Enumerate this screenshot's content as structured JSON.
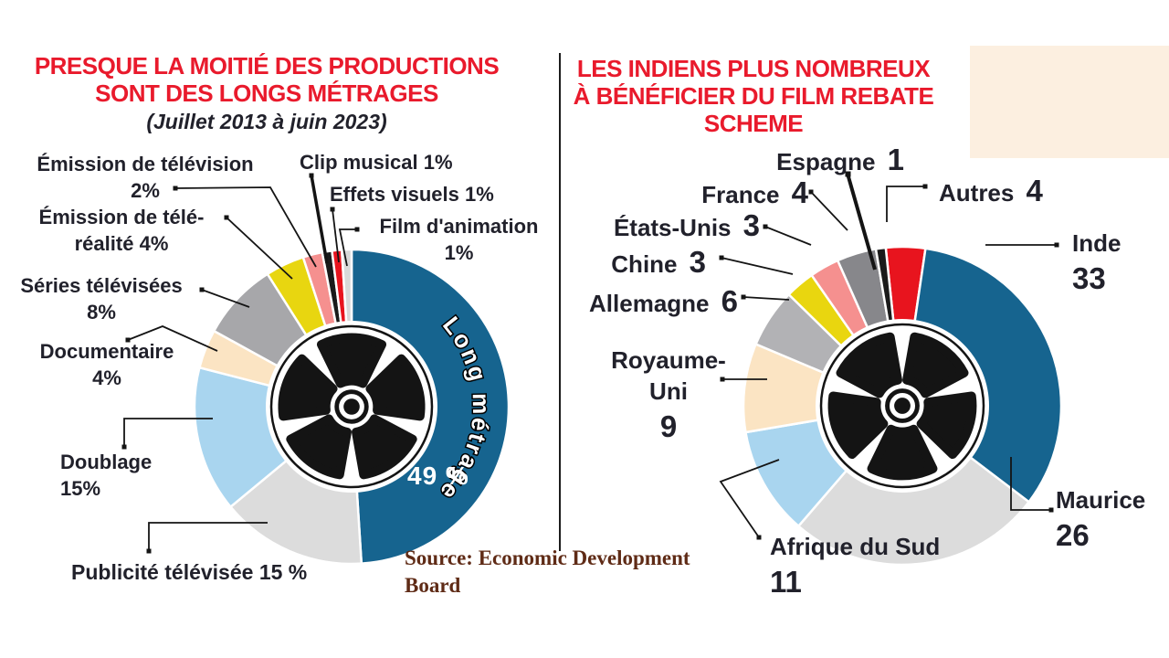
{
  "left_panel": {
    "title_lines": [
      "PRESQUE LA MOITIÉ DES PRODUCTIONS",
      "SONT DES LONGS MÉTRAGES"
    ],
    "subtitle": "(Juillet 2013 à juin 2023)",
    "source_lines": [
      "Source: Economic Development",
      "Board"
    ]
  },
  "right_panel": {
    "title_lines": [
      "LES INDIENS PLUS NOMBREUX",
      "À BÉNÉFICIER DU FILM REBATE",
      "SCHEME"
    ]
  },
  "colors": {
    "title_red": "#e91a2c",
    "text_dark": "#21212b",
    "source_brown": "#5f2b16",
    "divider": "#1c1c1c",
    "cream_box": "#fcefe0",
    "reel_black": "#141414",
    "blue": "#16648f",
    "light_gray": "#dcdcdc",
    "light_blue": "#a9d5ef",
    "peach": "#fbe4c3",
    "gray": "#a7a7aa",
    "yellow": "#e8d610",
    "salmon": "#f5908f",
    "red": "#e8141e",
    "dark_gray": "#87878b",
    "black_segment": "#1a1a1a"
  },
  "chart_data": [
    {
      "type": "donut",
      "title": "PRESQUE LA MOITIÉ DES PRODUCTIONS SONT DES LONGS MÉTRAGES",
      "period": "(Juillet 2013 à juin 2023)",
      "unit": "%",
      "center_icon": "film-reel",
      "legend_position": "callouts-around-donut",
      "segments": [
        {
          "label": "Long métrage",
          "value": 49,
          "display": "49 %",
          "color": "#16648f"
        },
        {
          "label": "Publicité télévisée",
          "value": 15,
          "display": "15 %",
          "color": "#dcdcdc"
        },
        {
          "label": "Doublage",
          "value": 15,
          "display": "15%",
          "color": "#a9d5ef"
        },
        {
          "label": "Documentaire",
          "value": 4,
          "display": "4%",
          "color": "#fbe4c3"
        },
        {
          "label": "Séries télévisées",
          "value": 8,
          "display": "8%",
          "color": "#a7a7aa"
        },
        {
          "label": "Émission de télé-réalité",
          "value": 4,
          "display": "4%",
          "color": "#e8d610"
        },
        {
          "label": "Émission de télévision",
          "value": 2,
          "display": "2%",
          "color": "#f5908f"
        },
        {
          "label": "Clip musical",
          "value": 1,
          "display": "1%",
          "color": "#1a1a1a"
        },
        {
          "label": "Effets visuels",
          "value": 1,
          "display": "1%",
          "color": "#e8141e"
        },
        {
          "label": "Film d'animation",
          "value": 1,
          "display": "1%",
          "color": "#d8d8d8"
        }
      ]
    },
    {
      "type": "donut",
      "title": "LES INDIENS PLUS NOMBREUX À BÉNÉFICIER DU FILM REBATE SCHEME",
      "unit": "count",
      "center_icon": "film-reel",
      "legend_position": "callouts-around-donut",
      "segments": [
        {
          "label": "Autres",
          "value": 4,
          "display": "4",
          "color": "#e8141e"
        },
        {
          "label": "Inde",
          "value": 33,
          "display": "33",
          "color": "#16648f"
        },
        {
          "label": "Maurice",
          "value": 26,
          "display": "26",
          "color": "#dcdcdc"
        },
        {
          "label": "Afrique du Sud",
          "value": 11,
          "display": "11",
          "color": "#a9d5ef"
        },
        {
          "label": "Royaume-Uni",
          "value": 9,
          "display": "9",
          "color": "#fbe4c3"
        },
        {
          "label": "Allemagne",
          "value": 6,
          "display": "6",
          "color": "#b2b2b5"
        },
        {
          "label": "Chine",
          "value": 3,
          "display": "3",
          "color": "#e9d60f"
        },
        {
          "label": "États-Unis",
          "value": 3,
          "display": "3",
          "color": "#f5908f"
        },
        {
          "label": "France",
          "value": 4,
          "display": "4",
          "color": "#87878b"
        },
        {
          "label": "Espagne",
          "value": 1,
          "display": "1",
          "color": "#1a1a1a"
        }
      ]
    }
  ]
}
